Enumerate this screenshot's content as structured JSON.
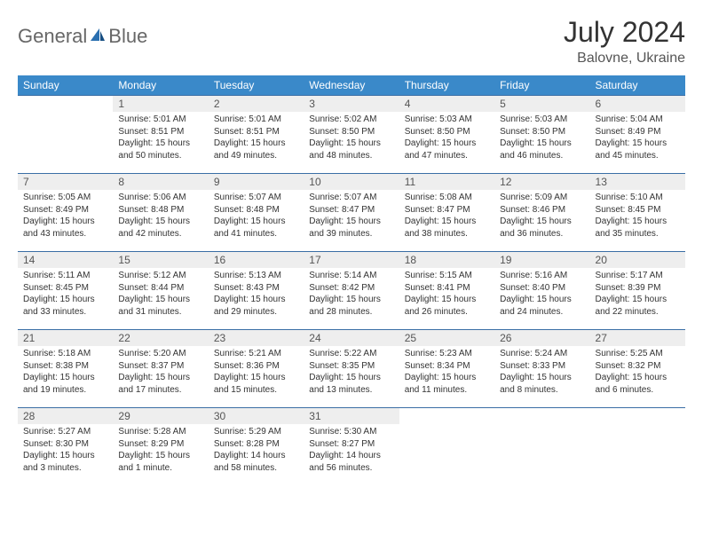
{
  "logo": {
    "word1": "General",
    "word2": "Blue"
  },
  "title": "July 2024",
  "location": "Balovne, Ukraine",
  "colors": {
    "header_bg": "#3a89c9",
    "header_text": "#ffffff",
    "cell_border": "#3a6ea5",
    "daynum_bg": "#eeeeee",
    "logo_text": "#676767",
    "logo_accent": "#2a6fb0"
  },
  "weekdays": [
    "Sunday",
    "Monday",
    "Tuesday",
    "Wednesday",
    "Thursday",
    "Friday",
    "Saturday"
  ],
  "weeks": [
    [
      null,
      {
        "n": "1",
        "sr": "Sunrise: 5:01 AM",
        "ss": "Sunset: 8:51 PM",
        "d1": "Daylight: 15 hours",
        "d2": "and 50 minutes."
      },
      {
        "n": "2",
        "sr": "Sunrise: 5:01 AM",
        "ss": "Sunset: 8:51 PM",
        "d1": "Daylight: 15 hours",
        "d2": "and 49 minutes."
      },
      {
        "n": "3",
        "sr": "Sunrise: 5:02 AM",
        "ss": "Sunset: 8:50 PM",
        "d1": "Daylight: 15 hours",
        "d2": "and 48 minutes."
      },
      {
        "n": "4",
        "sr": "Sunrise: 5:03 AM",
        "ss": "Sunset: 8:50 PM",
        "d1": "Daylight: 15 hours",
        "d2": "and 47 minutes."
      },
      {
        "n": "5",
        "sr": "Sunrise: 5:03 AM",
        "ss": "Sunset: 8:50 PM",
        "d1": "Daylight: 15 hours",
        "d2": "and 46 minutes."
      },
      {
        "n": "6",
        "sr": "Sunrise: 5:04 AM",
        "ss": "Sunset: 8:49 PM",
        "d1": "Daylight: 15 hours",
        "d2": "and 45 minutes."
      }
    ],
    [
      {
        "n": "7",
        "sr": "Sunrise: 5:05 AM",
        "ss": "Sunset: 8:49 PM",
        "d1": "Daylight: 15 hours",
        "d2": "and 43 minutes."
      },
      {
        "n": "8",
        "sr": "Sunrise: 5:06 AM",
        "ss": "Sunset: 8:48 PM",
        "d1": "Daylight: 15 hours",
        "d2": "and 42 minutes."
      },
      {
        "n": "9",
        "sr": "Sunrise: 5:07 AM",
        "ss": "Sunset: 8:48 PM",
        "d1": "Daylight: 15 hours",
        "d2": "and 41 minutes."
      },
      {
        "n": "10",
        "sr": "Sunrise: 5:07 AM",
        "ss": "Sunset: 8:47 PM",
        "d1": "Daylight: 15 hours",
        "d2": "and 39 minutes."
      },
      {
        "n": "11",
        "sr": "Sunrise: 5:08 AM",
        "ss": "Sunset: 8:47 PM",
        "d1": "Daylight: 15 hours",
        "d2": "and 38 minutes."
      },
      {
        "n": "12",
        "sr": "Sunrise: 5:09 AM",
        "ss": "Sunset: 8:46 PM",
        "d1": "Daylight: 15 hours",
        "d2": "and 36 minutes."
      },
      {
        "n": "13",
        "sr": "Sunrise: 5:10 AM",
        "ss": "Sunset: 8:45 PM",
        "d1": "Daylight: 15 hours",
        "d2": "and 35 minutes."
      }
    ],
    [
      {
        "n": "14",
        "sr": "Sunrise: 5:11 AM",
        "ss": "Sunset: 8:45 PM",
        "d1": "Daylight: 15 hours",
        "d2": "and 33 minutes."
      },
      {
        "n": "15",
        "sr": "Sunrise: 5:12 AM",
        "ss": "Sunset: 8:44 PM",
        "d1": "Daylight: 15 hours",
        "d2": "and 31 minutes."
      },
      {
        "n": "16",
        "sr": "Sunrise: 5:13 AM",
        "ss": "Sunset: 8:43 PM",
        "d1": "Daylight: 15 hours",
        "d2": "and 29 minutes."
      },
      {
        "n": "17",
        "sr": "Sunrise: 5:14 AM",
        "ss": "Sunset: 8:42 PM",
        "d1": "Daylight: 15 hours",
        "d2": "and 28 minutes."
      },
      {
        "n": "18",
        "sr": "Sunrise: 5:15 AM",
        "ss": "Sunset: 8:41 PM",
        "d1": "Daylight: 15 hours",
        "d2": "and 26 minutes."
      },
      {
        "n": "19",
        "sr": "Sunrise: 5:16 AM",
        "ss": "Sunset: 8:40 PM",
        "d1": "Daylight: 15 hours",
        "d2": "and 24 minutes."
      },
      {
        "n": "20",
        "sr": "Sunrise: 5:17 AM",
        "ss": "Sunset: 8:39 PM",
        "d1": "Daylight: 15 hours",
        "d2": "and 22 minutes."
      }
    ],
    [
      {
        "n": "21",
        "sr": "Sunrise: 5:18 AM",
        "ss": "Sunset: 8:38 PM",
        "d1": "Daylight: 15 hours",
        "d2": "and 19 minutes."
      },
      {
        "n": "22",
        "sr": "Sunrise: 5:20 AM",
        "ss": "Sunset: 8:37 PM",
        "d1": "Daylight: 15 hours",
        "d2": "and 17 minutes."
      },
      {
        "n": "23",
        "sr": "Sunrise: 5:21 AM",
        "ss": "Sunset: 8:36 PM",
        "d1": "Daylight: 15 hours",
        "d2": "and 15 minutes."
      },
      {
        "n": "24",
        "sr": "Sunrise: 5:22 AM",
        "ss": "Sunset: 8:35 PM",
        "d1": "Daylight: 15 hours",
        "d2": "and 13 minutes."
      },
      {
        "n": "25",
        "sr": "Sunrise: 5:23 AM",
        "ss": "Sunset: 8:34 PM",
        "d1": "Daylight: 15 hours",
        "d2": "and 11 minutes."
      },
      {
        "n": "26",
        "sr": "Sunrise: 5:24 AM",
        "ss": "Sunset: 8:33 PM",
        "d1": "Daylight: 15 hours",
        "d2": "and 8 minutes."
      },
      {
        "n": "27",
        "sr": "Sunrise: 5:25 AM",
        "ss": "Sunset: 8:32 PM",
        "d1": "Daylight: 15 hours",
        "d2": "and 6 minutes."
      }
    ],
    [
      {
        "n": "28",
        "sr": "Sunrise: 5:27 AM",
        "ss": "Sunset: 8:30 PM",
        "d1": "Daylight: 15 hours",
        "d2": "and 3 minutes."
      },
      {
        "n": "29",
        "sr": "Sunrise: 5:28 AM",
        "ss": "Sunset: 8:29 PM",
        "d1": "Daylight: 15 hours",
        "d2": "and 1 minute."
      },
      {
        "n": "30",
        "sr": "Sunrise: 5:29 AM",
        "ss": "Sunset: 8:28 PM",
        "d1": "Daylight: 14 hours",
        "d2": "and 58 minutes."
      },
      {
        "n": "31",
        "sr": "Sunrise: 5:30 AM",
        "ss": "Sunset: 8:27 PM",
        "d1": "Daylight: 14 hours",
        "d2": "and 56 minutes."
      },
      null,
      null,
      null
    ]
  ]
}
